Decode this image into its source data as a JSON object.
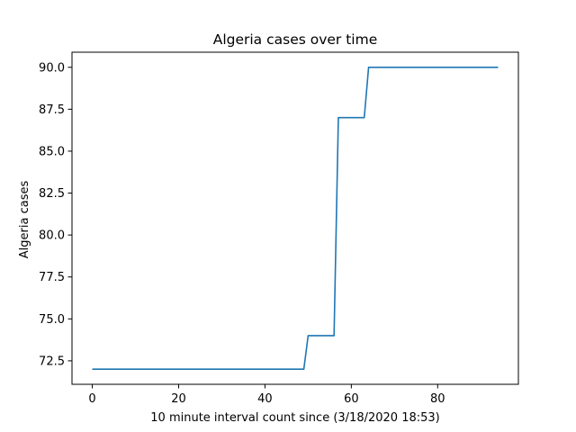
{
  "chart_data": {
    "type": "line",
    "title": "Algeria cases over time",
    "xlabel": "10 minute interval count since (3/18/2020 18:53)",
    "ylabel": "Algeria cases",
    "xlim": [
      -4.7,
      98.7
    ],
    "ylim": [
      71.1,
      90.9
    ],
    "x_ticks": [
      0,
      20,
      40,
      60,
      80
    ],
    "x_tick_labels": [
      "0",
      "20",
      "40",
      "60",
      "80"
    ],
    "y_ticks": [
      72.5,
      75.0,
      77.5,
      80.0,
      82.5,
      85.0,
      87.5,
      90.0
    ],
    "y_tick_labels": [
      "72.5",
      "75.0",
      "77.5",
      "80.0",
      "82.5",
      "85.0",
      "87.5",
      "90.0"
    ],
    "grid": false,
    "series": [
      {
        "name": "Algeria cases",
        "color": "#1f77b4",
        "x": [
          0,
          49,
          50,
          56,
          57,
          63,
          64,
          94
        ],
        "y": [
          72,
          72,
          74,
          74,
          87,
          87,
          90,
          90
        ]
      }
    ]
  }
}
